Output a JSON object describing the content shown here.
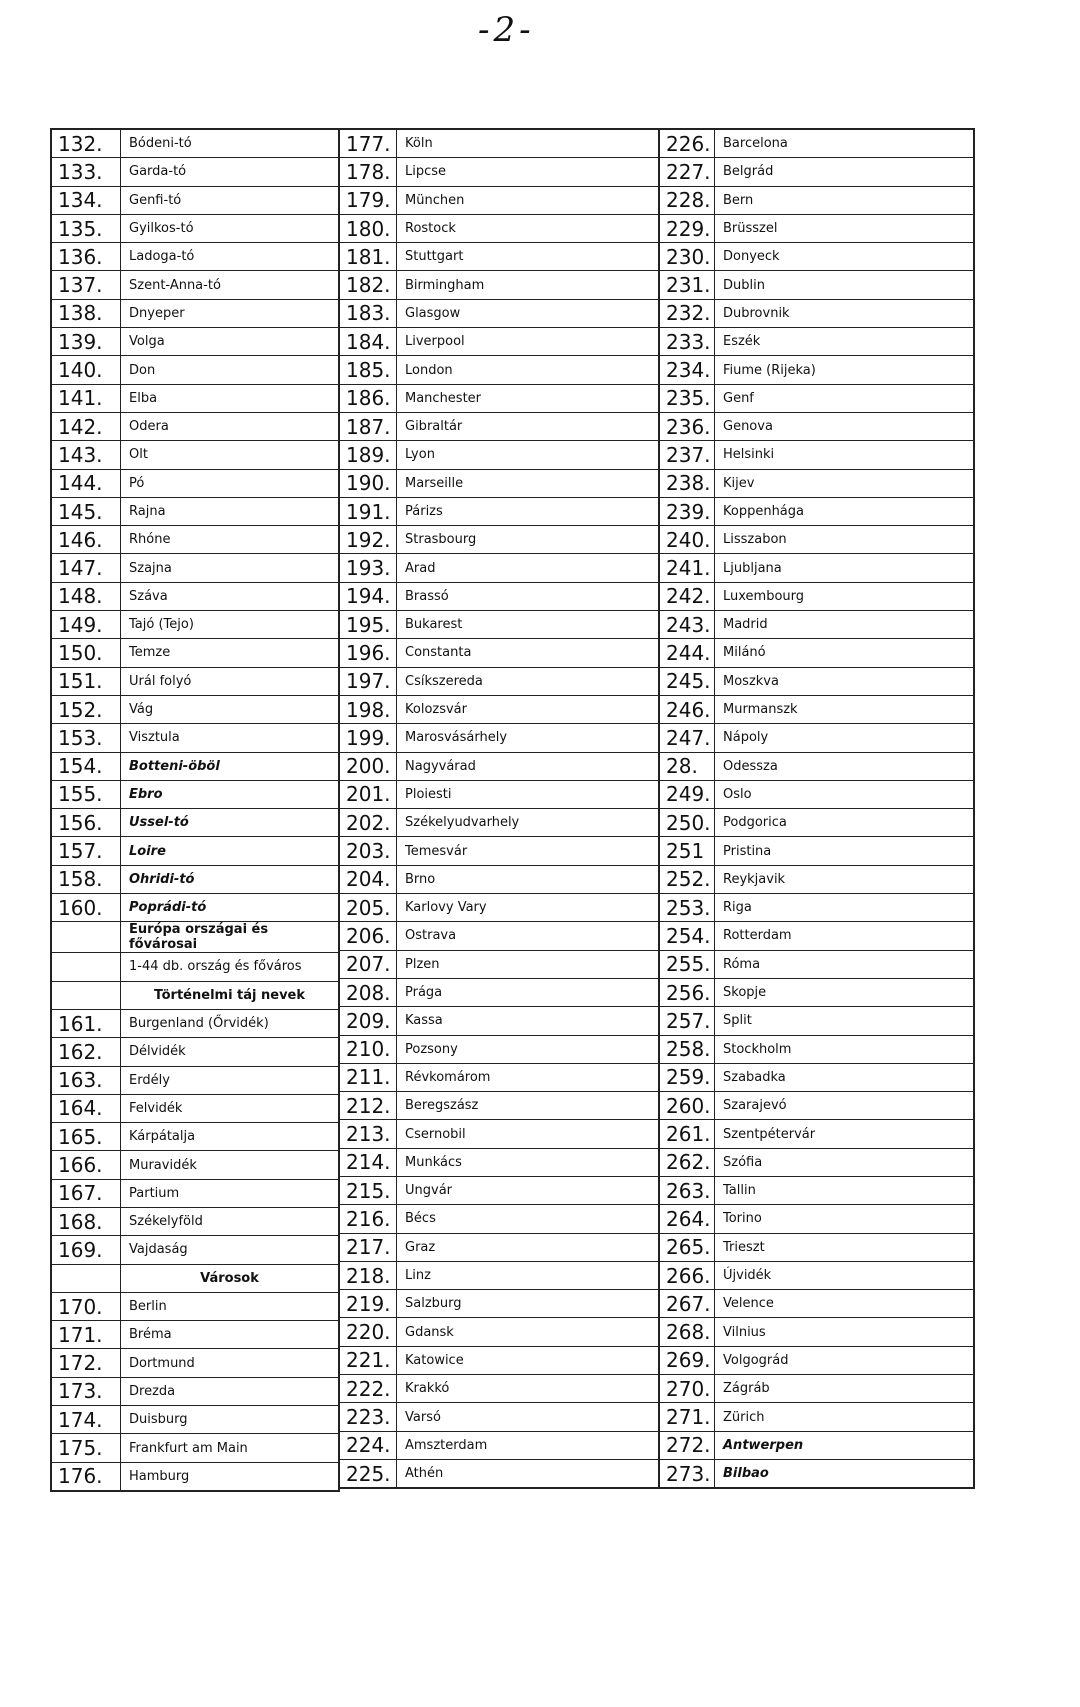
{
  "page_number": "-2-",
  "columns": [
    [
      {
        "n": "132.",
        "t": "Bódeni-tó"
      },
      {
        "n": "133.",
        "t": "Garda-tó"
      },
      {
        "n": "134.",
        "t": "Genfi-tó"
      },
      {
        "n": "135.",
        "t": "Gyilkos-tó"
      },
      {
        "n": "136.",
        "t": "Ladoga-tó"
      },
      {
        "n": "137.",
        "t": "Szent-Anna-tó"
      },
      {
        "n": "138.",
        "t": "Dnyeper"
      },
      {
        "n": "139.",
        "t": "Volga"
      },
      {
        "n": "140.",
        "t": "Don"
      },
      {
        "n": "141.",
        "t": "Elba"
      },
      {
        "n": "142.",
        "t": "Odera"
      },
      {
        "n": "143.",
        "t": "Olt"
      },
      {
        "n": "144.",
        "t": "Pó"
      },
      {
        "n": "145.",
        "t": "Rajna"
      },
      {
        "n": "146.",
        "t": "Rhóne"
      },
      {
        "n": "147.",
        "t": "Szajna"
      },
      {
        "n": "148.",
        "t": "Száva"
      },
      {
        "n": "149.",
        "t": "Tajó (Tejo)"
      },
      {
        "n": "150.",
        "t": "Temze"
      },
      {
        "n": "151.",
        "t": "Urál folyó"
      },
      {
        "n": "152.",
        "t": "Vág"
      },
      {
        "n": "153.",
        "t": "Visztula"
      },
      {
        "n": "154.",
        "t": "Botteni-öböl",
        "s": "italic"
      },
      {
        "n": "155.",
        "t": "Ebro",
        "s": "italic"
      },
      {
        "n": "156.",
        "t": "Ussel-tó",
        "s": "italic"
      },
      {
        "n": "157.",
        "t": "Loire",
        "s": "italic"
      },
      {
        "n": "158.",
        "t": "Ohridi-tó",
        "s": "italic"
      },
      {
        "n": "160.",
        "t": "Poprádi-tó",
        "s": "italic"
      },
      {
        "n": "",
        "t": "Európa országai és fővárosai",
        "s": "bold"
      },
      {
        "n": "",
        "t": "1-44 db. ország és főváros"
      },
      {
        "n": "",
        "t": "Történelmi táj nevek",
        "s": "bold center"
      },
      {
        "n": "161.",
        "t": "Burgenland (Őrvidék)"
      },
      {
        "n": "162.",
        "t": "Délvidék"
      },
      {
        "n": "163.",
        "t": "Erdély"
      },
      {
        "n": "164.",
        "t": "Felvidék"
      },
      {
        "n": "165.",
        "t": "Kárpátalja"
      },
      {
        "n": "166.",
        "t": "Muravidék"
      },
      {
        "n": "167.",
        "t": "Partium"
      },
      {
        "n": "168.",
        "t": "Székelyföld"
      },
      {
        "n": "169.",
        "t": "Vajdaság"
      },
      {
        "n": "",
        "t": "Városok",
        "s": "bold center"
      },
      {
        "n": "170.",
        "t": "Berlin"
      },
      {
        "n": "171.",
        "t": "Bréma"
      },
      {
        "n": "172.",
        "t": "Dortmund"
      },
      {
        "n": "173.",
        "t": "Drezda"
      },
      {
        "n": "174.",
        "t": "Duisburg"
      },
      {
        "n": "175.",
        "t": "Frankfurt am Main"
      },
      {
        "n": "176.",
        "t": "Hamburg"
      }
    ],
    [
      {
        "n": "177.",
        "t": "Köln"
      },
      {
        "n": "178.",
        "t": "Lipcse"
      },
      {
        "n": "179.",
        "t": "München"
      },
      {
        "n": "180.",
        "t": "Rostock"
      },
      {
        "n": "181.",
        "t": "Stuttgart"
      },
      {
        "n": "182.",
        "t": "Birmingham"
      },
      {
        "n": "183.",
        "t": "Glasgow"
      },
      {
        "n": "184.",
        "t": "Liverpool"
      },
      {
        "n": "185.",
        "t": "London"
      },
      {
        "n": "186.",
        "t": "Manchester"
      },
      {
        "n": "187.",
        "t": "Gibraltár"
      },
      {
        "n": "189.",
        "t": "Lyon"
      },
      {
        "n": "190.",
        "t": "Marseille"
      },
      {
        "n": "191.",
        "t": "Párizs"
      },
      {
        "n": "192.",
        "t": "Strasbourg"
      },
      {
        "n": "193.",
        "t": "Arad"
      },
      {
        "n": "194.",
        "t": "Brassó"
      },
      {
        "n": "195.",
        "t": "Bukarest"
      },
      {
        "n": "196.",
        "t": "Constanta"
      },
      {
        "n": "197.",
        "t": "Csíkszereda"
      },
      {
        "n": "198.",
        "t": "Kolozsvár"
      },
      {
        "n": "199.",
        "t": "Marosvásárhely"
      },
      {
        "n": "200.",
        "t": "Nagyvárad"
      },
      {
        "n": "201.",
        "t": "Ploiesti"
      },
      {
        "n": "202.",
        "t": "Székelyudvarhely"
      },
      {
        "n": "203.",
        "t": "Temesvár"
      },
      {
        "n": "204.",
        "t": "Brno"
      },
      {
        "n": "205.",
        "t": "Karlovy Vary"
      },
      {
        "n": "206.",
        "t": "Ostrava"
      },
      {
        "n": "207.",
        "t": "Plzen"
      },
      {
        "n": "208.",
        "t": "Prága"
      },
      {
        "n": "209.",
        "t": "Kassa"
      },
      {
        "n": "210.",
        "t": "Pozsony"
      },
      {
        "n": "211.",
        "t": "Révkomárom"
      },
      {
        "n": "212.",
        "t": "Beregszász"
      },
      {
        "n": "213.",
        "t": "Csernobil"
      },
      {
        "n": "214.",
        "t": "Munkács"
      },
      {
        "n": "215.",
        "t": "Ungvár"
      },
      {
        "n": "216.",
        "t": "Bécs"
      },
      {
        "n": "217.",
        "t": "Graz"
      },
      {
        "n": "218.",
        "t": "Linz"
      },
      {
        "n": "219.",
        "t": "Salzburg"
      },
      {
        "n": "220.",
        "t": "Gdansk"
      },
      {
        "n": "221.",
        "t": "Katowice"
      },
      {
        "n": "222.",
        "t": "Krakkó"
      },
      {
        "n": "223.",
        "t": "Varsó"
      },
      {
        "n": "224.",
        "t": "Amszterdam"
      },
      {
        "n": "225.",
        "t": "Athén"
      }
    ],
    [
      {
        "n": "226.",
        "t": "Barcelona"
      },
      {
        "n": "227.",
        "t": "Belgrád"
      },
      {
        "n": "228.",
        "t": "Bern"
      },
      {
        "n": "229.",
        "t": "Brüsszel"
      },
      {
        "n": "230.",
        "t": "Donyeck"
      },
      {
        "n": "231.",
        "t": "Dublin"
      },
      {
        "n": "232.",
        "t": "Dubrovnik"
      },
      {
        "n": "233.",
        "t": "Eszék"
      },
      {
        "n": "234.",
        "t": "Fiume (Rijeka)"
      },
      {
        "n": "235.",
        "t": "Genf"
      },
      {
        "n": "236.",
        "t": "Genova"
      },
      {
        "n": "237.",
        "t": "Helsinki"
      },
      {
        "n": "238.",
        "t": "Kijev"
      },
      {
        "n": "239.",
        "t": "Koppenhága"
      },
      {
        "n": "240.",
        "t": "Lisszabon"
      },
      {
        "n": "241.",
        "t": "Ljubljana"
      },
      {
        "n": "242.",
        "t": "Luxembourg"
      },
      {
        "n": "243.",
        "t": "Madrid"
      },
      {
        "n": "244.",
        "t": "Milánó"
      },
      {
        "n": "245.",
        "t": "Moszkva"
      },
      {
        "n": "246.",
        "t": "Murmanszk"
      },
      {
        "n": "247.",
        "t": "Nápoly"
      },
      {
        "n": "28.",
        "t": "Odessza"
      },
      {
        "n": "249.",
        "t": "Oslo"
      },
      {
        "n": "250.",
        "t": "Podgorica"
      },
      {
        "n": "251",
        "t": "Pristina"
      },
      {
        "n": "252.",
        "t": "Reykjavik"
      },
      {
        "n": "253.",
        "t": "Riga"
      },
      {
        "n": "254.",
        "t": "Rotterdam"
      },
      {
        "n": "255.",
        "t": "Róma"
      },
      {
        "n": "256.",
        "t": "Skopje"
      },
      {
        "n": "257.",
        "t": "Split"
      },
      {
        "n": "258.",
        "t": "Stockholm"
      },
      {
        "n": "259.",
        "t": "Szabadka"
      },
      {
        "n": "260.",
        "t": "Szarajevó"
      },
      {
        "n": "261.",
        "t": "Szentpétervár"
      },
      {
        "n": "262.",
        "t": "Szófia"
      },
      {
        "n": "263.",
        "t": "Tallin"
      },
      {
        "n": "264.",
        "t": "Torino"
      },
      {
        "n": "265.",
        "t": "Trieszt"
      },
      {
        "n": "266.",
        "t": "Újvidék"
      },
      {
        "n": "267.",
        "t": "Velence"
      },
      {
        "n": "268.",
        "t": "Vilnius"
      },
      {
        "n": "269.",
        "t": "Volgográd"
      },
      {
        "n": "270.",
        "t": "Zágráb"
      },
      {
        "n": "271.",
        "t": "Zürich"
      },
      {
        "n": "272.",
        "t": "Antwerpen",
        "s": "italic"
      },
      {
        "n": "273.",
        "t": "Bilbao",
        "s": "italic"
      }
    ]
  ]
}
